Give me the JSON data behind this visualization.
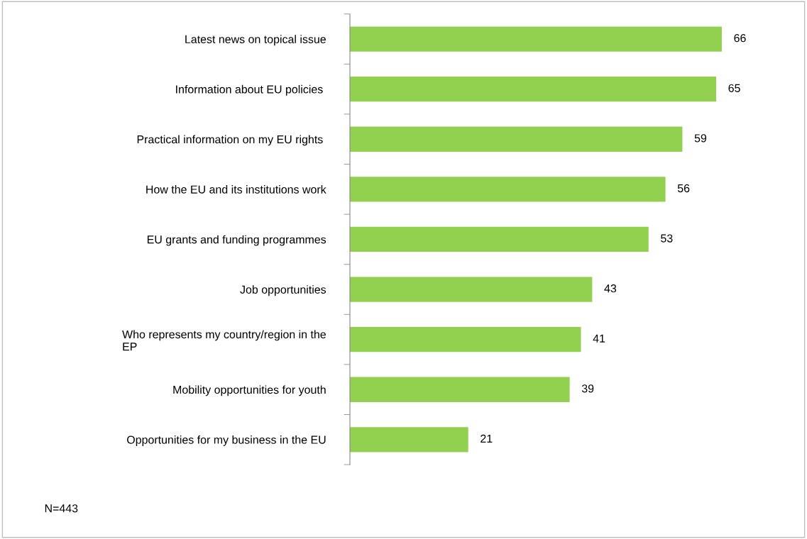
{
  "chart_data": {
    "type": "bar",
    "orientation": "horizontal",
    "categories": [
      "Latest news on topical issue",
      "Information about EU policies ",
      "Practical information on my EU rights ",
      "How the EU and its institutions work",
      "EU grants and funding programmes",
      "Job opportunities",
      "Who represents my country/region in the\nEP",
      "Mobility opportunities for youth",
      "Opportunities for my business in the EU"
    ],
    "values": [
      66,
      65,
      59,
      56,
      53,
      43,
      41,
      39,
      21
    ],
    "color": "#92d050",
    "data_labels": true,
    "annotations": [
      "N=443"
    ]
  }
}
